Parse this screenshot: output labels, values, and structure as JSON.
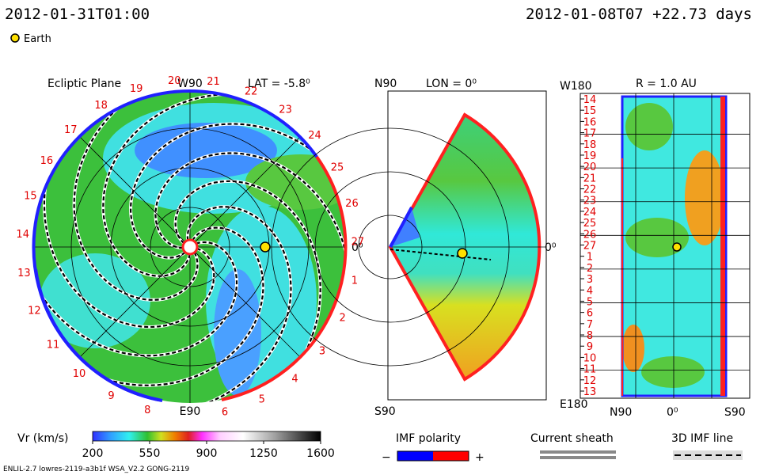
{
  "header": {
    "date": "2012-01-31T01:00",
    "run": "2012-01-08T07 +22.73 days",
    "legend": "Earth"
  },
  "ecliptic": {
    "title": "Ecliptic Plane",
    "lat": "LAT = -5.8⁰",
    "top": "W90",
    "bottom": "E90",
    "right": "0⁰",
    "carrington": [
      "1",
      "2",
      "3",
      "4",
      "5",
      "6",
      "8",
      "9",
      "10",
      "11",
      "12",
      "13",
      "14",
      "15",
      "16",
      "17",
      "18",
      "19",
      "20",
      "21",
      "22",
      "23",
      "24",
      "25",
      "26",
      "27"
    ]
  },
  "meridional": {
    "top": "N90",
    "lon": "LON = 0⁰",
    "right": "0⁰",
    "bottom": "S90"
  },
  "radial": {
    "top_left": "W180",
    "title": "R = 1.0 AU",
    "bottom_left": "E180",
    "x_labels": [
      "N90",
      "0⁰",
      "S90"
    ],
    "rows": [
      "14",
      "15",
      "16",
      "17",
      "18",
      "19",
      "20",
      "21",
      "22",
      "23",
      "24",
      "25",
      "26",
      "27",
      "1",
      "2",
      "3",
      "4",
      "5",
      "6",
      "7",
      "8",
      "9",
      "10",
      "11",
      "12",
      "13"
    ]
  },
  "colorbar": {
    "label": "Vr (km/s)",
    "ticks": [
      200,
      550,
      900,
      1250,
      1600
    ]
  },
  "imf": {
    "title": "IMF polarity",
    "minus": "−",
    "plus": "+"
  },
  "sheath": {
    "title": "Current sheath"
  },
  "imf_line": {
    "title": "3D IMF line"
  },
  "footer": "ENLIL-2.7 lowres-2119-a3b1f WSA_V2.2 GONG-2119"
}
